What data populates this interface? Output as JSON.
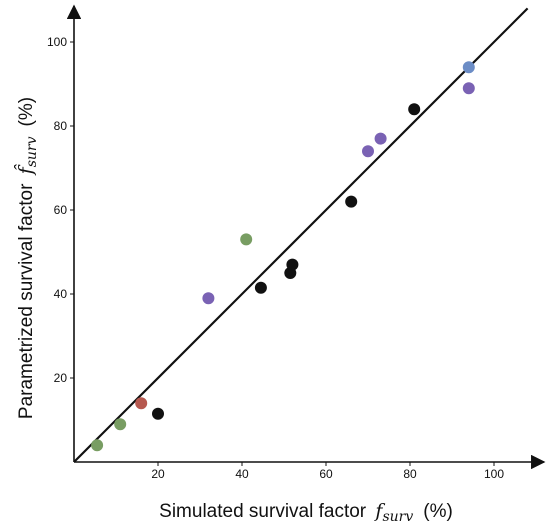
{
  "chart_data": {
    "type": "scatter",
    "title": "",
    "xlabel": {
      "prefix": "Simulated survival factor",
      "var": "f",
      "sub": "surv",
      "unit": "(%)"
    },
    "ylabel": {
      "prefix": "Parametrized survival factor",
      "var": "f̂",
      "sub": "surv",
      "unit": "(%)"
    },
    "xlim": [
      0,
      112
    ],
    "ylim": [
      0,
      112
    ],
    "xticks": [
      20,
      40,
      60,
      80,
      100
    ],
    "yticks": [
      20,
      40,
      60,
      80,
      100
    ],
    "grid": false,
    "reference_line": {
      "from": [
        0,
        0
      ],
      "to": [
        108,
        108
      ],
      "color": "#111111"
    },
    "colors": {
      "black": "#111111",
      "purple": "#7a62b4",
      "green": "#789d62",
      "red": "#b6584f",
      "blue": "#6c8dc6"
    },
    "points": [
      {
        "x": 5.5,
        "y": 4,
        "color": "green"
      },
      {
        "x": 11,
        "y": 9,
        "color": "green"
      },
      {
        "x": 16,
        "y": 14,
        "color": "red"
      },
      {
        "x": 20,
        "y": 11.5,
        "color": "black"
      },
      {
        "x": 32,
        "y": 39,
        "color": "purple"
      },
      {
        "x": 41,
        "y": 53,
        "color": "green"
      },
      {
        "x": 44.5,
        "y": 41.5,
        "color": "black"
      },
      {
        "x": 51.5,
        "y": 45,
        "color": "black"
      },
      {
        "x": 52,
        "y": 47,
        "color": "black"
      },
      {
        "x": 66,
        "y": 62,
        "color": "black"
      },
      {
        "x": 70,
        "y": 74,
        "color": "purple"
      },
      {
        "x": 73,
        "y": 77,
        "color": "purple"
      },
      {
        "x": 81,
        "y": 84,
        "color": "black"
      },
      {
        "x": 94,
        "y": 94,
        "color": "blue"
      },
      {
        "x": 94,
        "y": 89,
        "color": "purple"
      }
    ]
  }
}
